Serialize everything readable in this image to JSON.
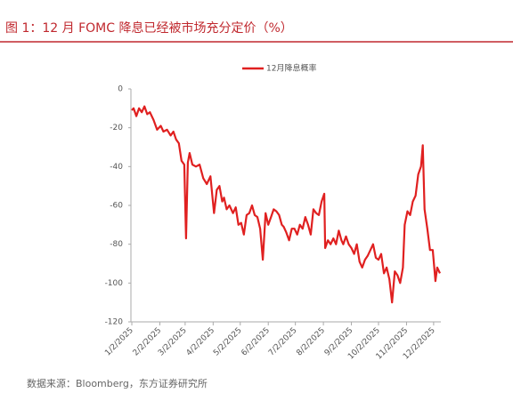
{
  "chart_data": {
    "type": "line",
    "title": "图 1：12 月 FOMC 降息已经被市场充分定价（%）",
    "source": "数据来源：Bloomberg，东方证券研究所",
    "legend": "top",
    "x": [
      "2025-01-02",
      "2025-01-04",
      "2025-01-07",
      "2025-01-10",
      "2025-01-13",
      "2025-01-16",
      "2025-01-19",
      "2025-01-22",
      "2025-01-26",
      "2025-01-30",
      "2025-02-03",
      "2025-02-06",
      "2025-02-10",
      "2025-02-14",
      "2025-02-17",
      "2025-02-20",
      "2025-02-23",
      "2025-02-26",
      "2025-03-01",
      "2025-03-03",
      "2025-03-05",
      "2025-03-07",
      "2025-03-10",
      "2025-03-14",
      "2025-03-18",
      "2025-03-22",
      "2025-03-26",
      "2025-03-30",
      "2025-04-03",
      "2025-04-06",
      "2025-04-09",
      "2025-04-12",
      "2025-04-14",
      "2025-04-17",
      "2025-04-20",
      "2025-04-24",
      "2025-04-27",
      "2025-04-30",
      "2025-05-03",
      "2025-05-06",
      "2025-05-09",
      "2025-05-12",
      "2025-05-15",
      "2025-05-18",
      "2025-05-21",
      "2025-05-24",
      "2025-05-27",
      "2025-05-30",
      "2025-06-02",
      "2025-06-05",
      "2025-06-08",
      "2025-06-11",
      "2025-06-14",
      "2025-06-17",
      "2025-06-19",
      "2025-06-22",
      "2025-06-25",
      "2025-06-28",
      "2025-07-01",
      "2025-07-04",
      "2025-07-07",
      "2025-07-10",
      "2025-07-13",
      "2025-07-16",
      "2025-07-19",
      "2025-07-22",
      "2025-07-25",
      "2025-07-28",
      "2025-07-31",
      "2025-08-03",
      "2025-08-04",
      "2025-08-07",
      "2025-08-10",
      "2025-08-13",
      "2025-08-16",
      "2025-08-19",
      "2025-08-22",
      "2025-08-24",
      "2025-08-27",
      "2025-08-30",
      "2025-09-02",
      "2025-09-05",
      "2025-09-08",
      "2025-09-11",
      "2025-09-14",
      "2025-09-17",
      "2025-09-20",
      "2025-09-23",
      "2025-09-26",
      "2025-09-29",
      "2025-10-02",
      "2025-10-05",
      "2025-10-08",
      "2025-10-11",
      "2025-10-14",
      "2025-10-17",
      "2025-10-20",
      "2025-10-23",
      "2025-10-26",
      "2025-10-29",
      "2025-10-31",
      "2025-11-03",
      "2025-11-06",
      "2025-11-09",
      "2025-11-12",
      "2025-11-15",
      "2025-11-18",
      "2025-11-20",
      "2025-11-22",
      "2025-11-25",
      "2025-11-28",
      "2025-12-01",
      "2025-12-04",
      "2025-12-06",
      "2025-12-09"
    ],
    "series": [
      {
        "name": "12月降息概率",
        "color": "#e02020",
        "values": [
          -11,
          -10,
          -14,
          -10,
          -12,
          -9,
          -13,
          -12,
          -16,
          -21,
          -19,
          -22,
          -21,
          -24,
          -22,
          -26,
          -28,
          -37,
          -39,
          -77,
          -38,
          -33,
          -39,
          -40,
          -39,
          -46,
          -49,
          -45,
          -64,
          -52,
          -50,
          -58,
          -56,
          -62,
          -60,
          -64,
          -61,
          -70,
          -69,
          -75,
          -65,
          -64,
          -60,
          -65,
          -66,
          -72,
          -88,
          -64,
          -70,
          -66,
          -62,
          -63,
          -65,
          -70,
          -71,
          -74,
          -78,
          -72,
          -72,
          -75,
          -70,
          -72,
          -66,
          -70,
          -75,
          -62,
          -64,
          -65,
          -58,
          -54,
          -82,
          -78,
          -80,
          -77,
          -80,
          -73,
          -78,
          -80,
          -76,
          -80,
          -82,
          -85,
          -80,
          -89,
          -92,
          -88,
          -86,
          -83,
          -80,
          -87,
          -88,
          -85,
          -95,
          -92,
          -98,
          -110,
          -94,
          -96,
          -100,
          -92,
          -70,
          -63,
          -65,
          -58,
          -55,
          -44,
          -40,
          -29,
          -62,
          -72,
          -83,
          -83,
          -99,
          -92,
          -95
        ]
      }
    ],
    "xlim": [
      "2025-01-01",
      "2025-12-10"
    ],
    "xticks": [
      {
        "value": "2025-01-02",
        "label": "1/2/2025"
      },
      {
        "value": "2025-02-02",
        "label": "2/2/2025"
      },
      {
        "value": "2025-03-02",
        "label": "3/2/2025"
      },
      {
        "value": "2025-04-02",
        "label": "4/2/2025"
      },
      {
        "value": "2025-05-02",
        "label": "5/2/2025"
      },
      {
        "value": "2025-06-02",
        "label": "6/2/2025"
      },
      {
        "value": "2025-07-02",
        "label": "7/2/2025"
      },
      {
        "value": "2025-08-02",
        "label": "8/2/2025"
      },
      {
        "value": "2025-09-02",
        "label": "9/2/2025"
      },
      {
        "value": "2025-10-02",
        "label": "10/2/2025"
      },
      {
        "value": "2025-11-02",
        "label": "11/2/2025"
      },
      {
        "value": "2025-12-02",
        "label": "12/2/2025"
      }
    ],
    "ylim": [
      -120,
      0
    ],
    "yticks": [
      0,
      -20,
      -40,
      -60,
      -80,
      -100,
      -120
    ]
  }
}
